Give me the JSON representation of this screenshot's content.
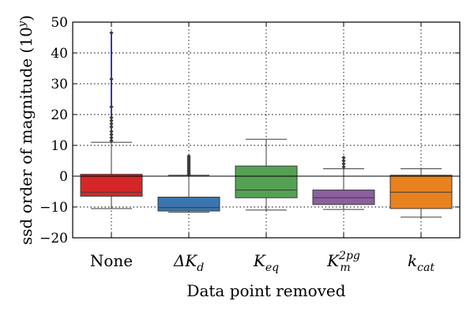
{
  "chart_data": {
    "type": "box",
    "xlabel": "Data point removed",
    "ylabel": "ssd order of magnitude (10",
    "ylabel_sup": "y",
    "ylabel_close": ")",
    "ylim": [
      -20,
      50
    ],
    "yticks": [
      -20,
      -10,
      0,
      10,
      20,
      30,
      40,
      50
    ],
    "grid": true,
    "categories": [
      {
        "base": "None",
        "sub": "",
        "sup": "",
        "italic": false
      },
      {
        "base": "ΔK",
        "sub": "d",
        "sup": "",
        "italic": true
      },
      {
        "base": "K",
        "sub": "eq",
        "sup": "",
        "italic": true
      },
      {
        "base": "K",
        "sub": "m",
        "sup": "2pg",
        "italic": true
      },
      {
        "base": "k",
        "sub": "cat",
        "sup": "",
        "italic": true
      }
    ],
    "boxes": [
      {
        "color": "#d62728",
        "q1": -6.5,
        "median": -5.2,
        "q3": 0.6,
        "whislo": -10.5,
        "whishi": 11.0,
        "fliers": [
          11.5,
          12.5,
          13.5,
          14.5,
          16,
          17,
          18,
          19,
          22.5,
          31.5,
          46.5
        ],
        "highlight_line": [
          11,
          46.5
        ],
        "highlight_color": "#0000cc"
      },
      {
        "color": "#3b75af",
        "q1": -11.3,
        "median": -10.2,
        "q3": -6.8,
        "whislo": -11.7,
        "whishi": 0.3,
        "fliers": [
          0.5,
          1,
          1.5,
          2,
          2.5,
          3,
          3.5,
          4,
          4.5,
          5,
          5.5,
          6,
          6.5
        ],
        "highlight_line": null,
        "highlight_color": null
      },
      {
        "color": "#55a153",
        "q1": -7.0,
        "median": -4.5,
        "q3": 3.3,
        "whislo": -11.0,
        "whishi": 12.0,
        "fliers": [],
        "highlight_line": null,
        "highlight_color": null
      },
      {
        "color": "#8c5fa0",
        "q1": -9.2,
        "median": -7.0,
        "q3": -4.5,
        "whislo": -10.8,
        "whishi": 2.4,
        "fliers": [
          3,
          4,
          5,
          6
        ],
        "highlight_line": null,
        "highlight_color": null
      },
      {
        "color": "#e8821e",
        "q1": -10.5,
        "median": -5.2,
        "q3": 0.3,
        "whislo": -13.3,
        "whishi": 2.4,
        "fliers": [],
        "highlight_line": null,
        "highlight_color": null
      }
    ]
  }
}
